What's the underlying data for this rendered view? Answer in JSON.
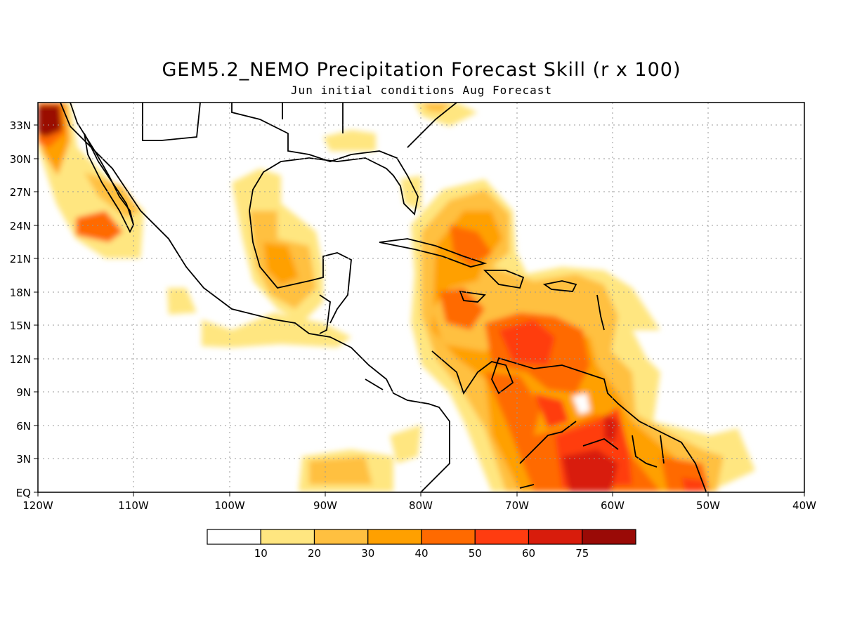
{
  "title": "GEM5.2_NEMO Precipitation Forecast Skill (r x 100)",
  "subtitle": "Jun initial conditions  Aug Forecast",
  "map": {
    "region": "Caribbean / Central America",
    "lon_range": [
      -120,
      -40
    ],
    "lat_range": [
      0,
      35
    ],
    "lat_ticks": [
      "33N",
      "30N",
      "27N",
      "24N",
      "21N",
      "18N",
      "15N",
      "12N",
      "9N",
      "6N",
      "3N",
      "EQ"
    ],
    "lon_ticks": [
      "120W",
      "110W",
      "100W",
      "90W",
      "80W",
      "70W",
      "60W",
      "50W",
      "40W"
    ],
    "grid": true,
    "grid_style": "dotted"
  },
  "colorbar": {
    "colors": [
      "#ffffff",
      "#ffe680",
      "#ffc040",
      "#ffa000",
      "#ff6a00",
      "#ff3c10",
      "#d81c0c",
      "#9a0a06"
    ],
    "labels": [
      "10",
      "20",
      "30",
      "40",
      "50",
      "60",
      "75"
    ]
  },
  "chart_data": {
    "type": "heatmap",
    "title": "GEM5.2_NEMO Precipitation Forecast Skill (r x 100)",
    "subtitle": "Jun initial conditions  Aug Forecast",
    "x_range": [
      -120,
      -40
    ],
    "y_range": [
      0,
      35
    ],
    "levels": [
      10,
      20,
      30,
      40,
      50,
      60,
      75
    ],
    "regions": [
      {
        "area": "Baja California / Pacific off Southern California",
        "value_range": [
          10,
          75
        ]
      },
      {
        "area": "Western Gulf of Mexico",
        "value_range": [
          10,
          40
        ]
      },
      {
        "area": "Bahamas / Cuba",
        "value_range": [
          10,
          50
        ]
      },
      {
        "area": "Central Caribbean Sea",
        "value_range": [
          20,
          60
        ]
      },
      {
        "area": "Venezuela / Guianas / Northern Brazil",
        "value_range": [
          20,
          75
        ]
      },
      {
        "area": "Eastern Tropical Pacific",
        "value_range": [
          10,
          30
        ]
      }
    ]
  }
}
